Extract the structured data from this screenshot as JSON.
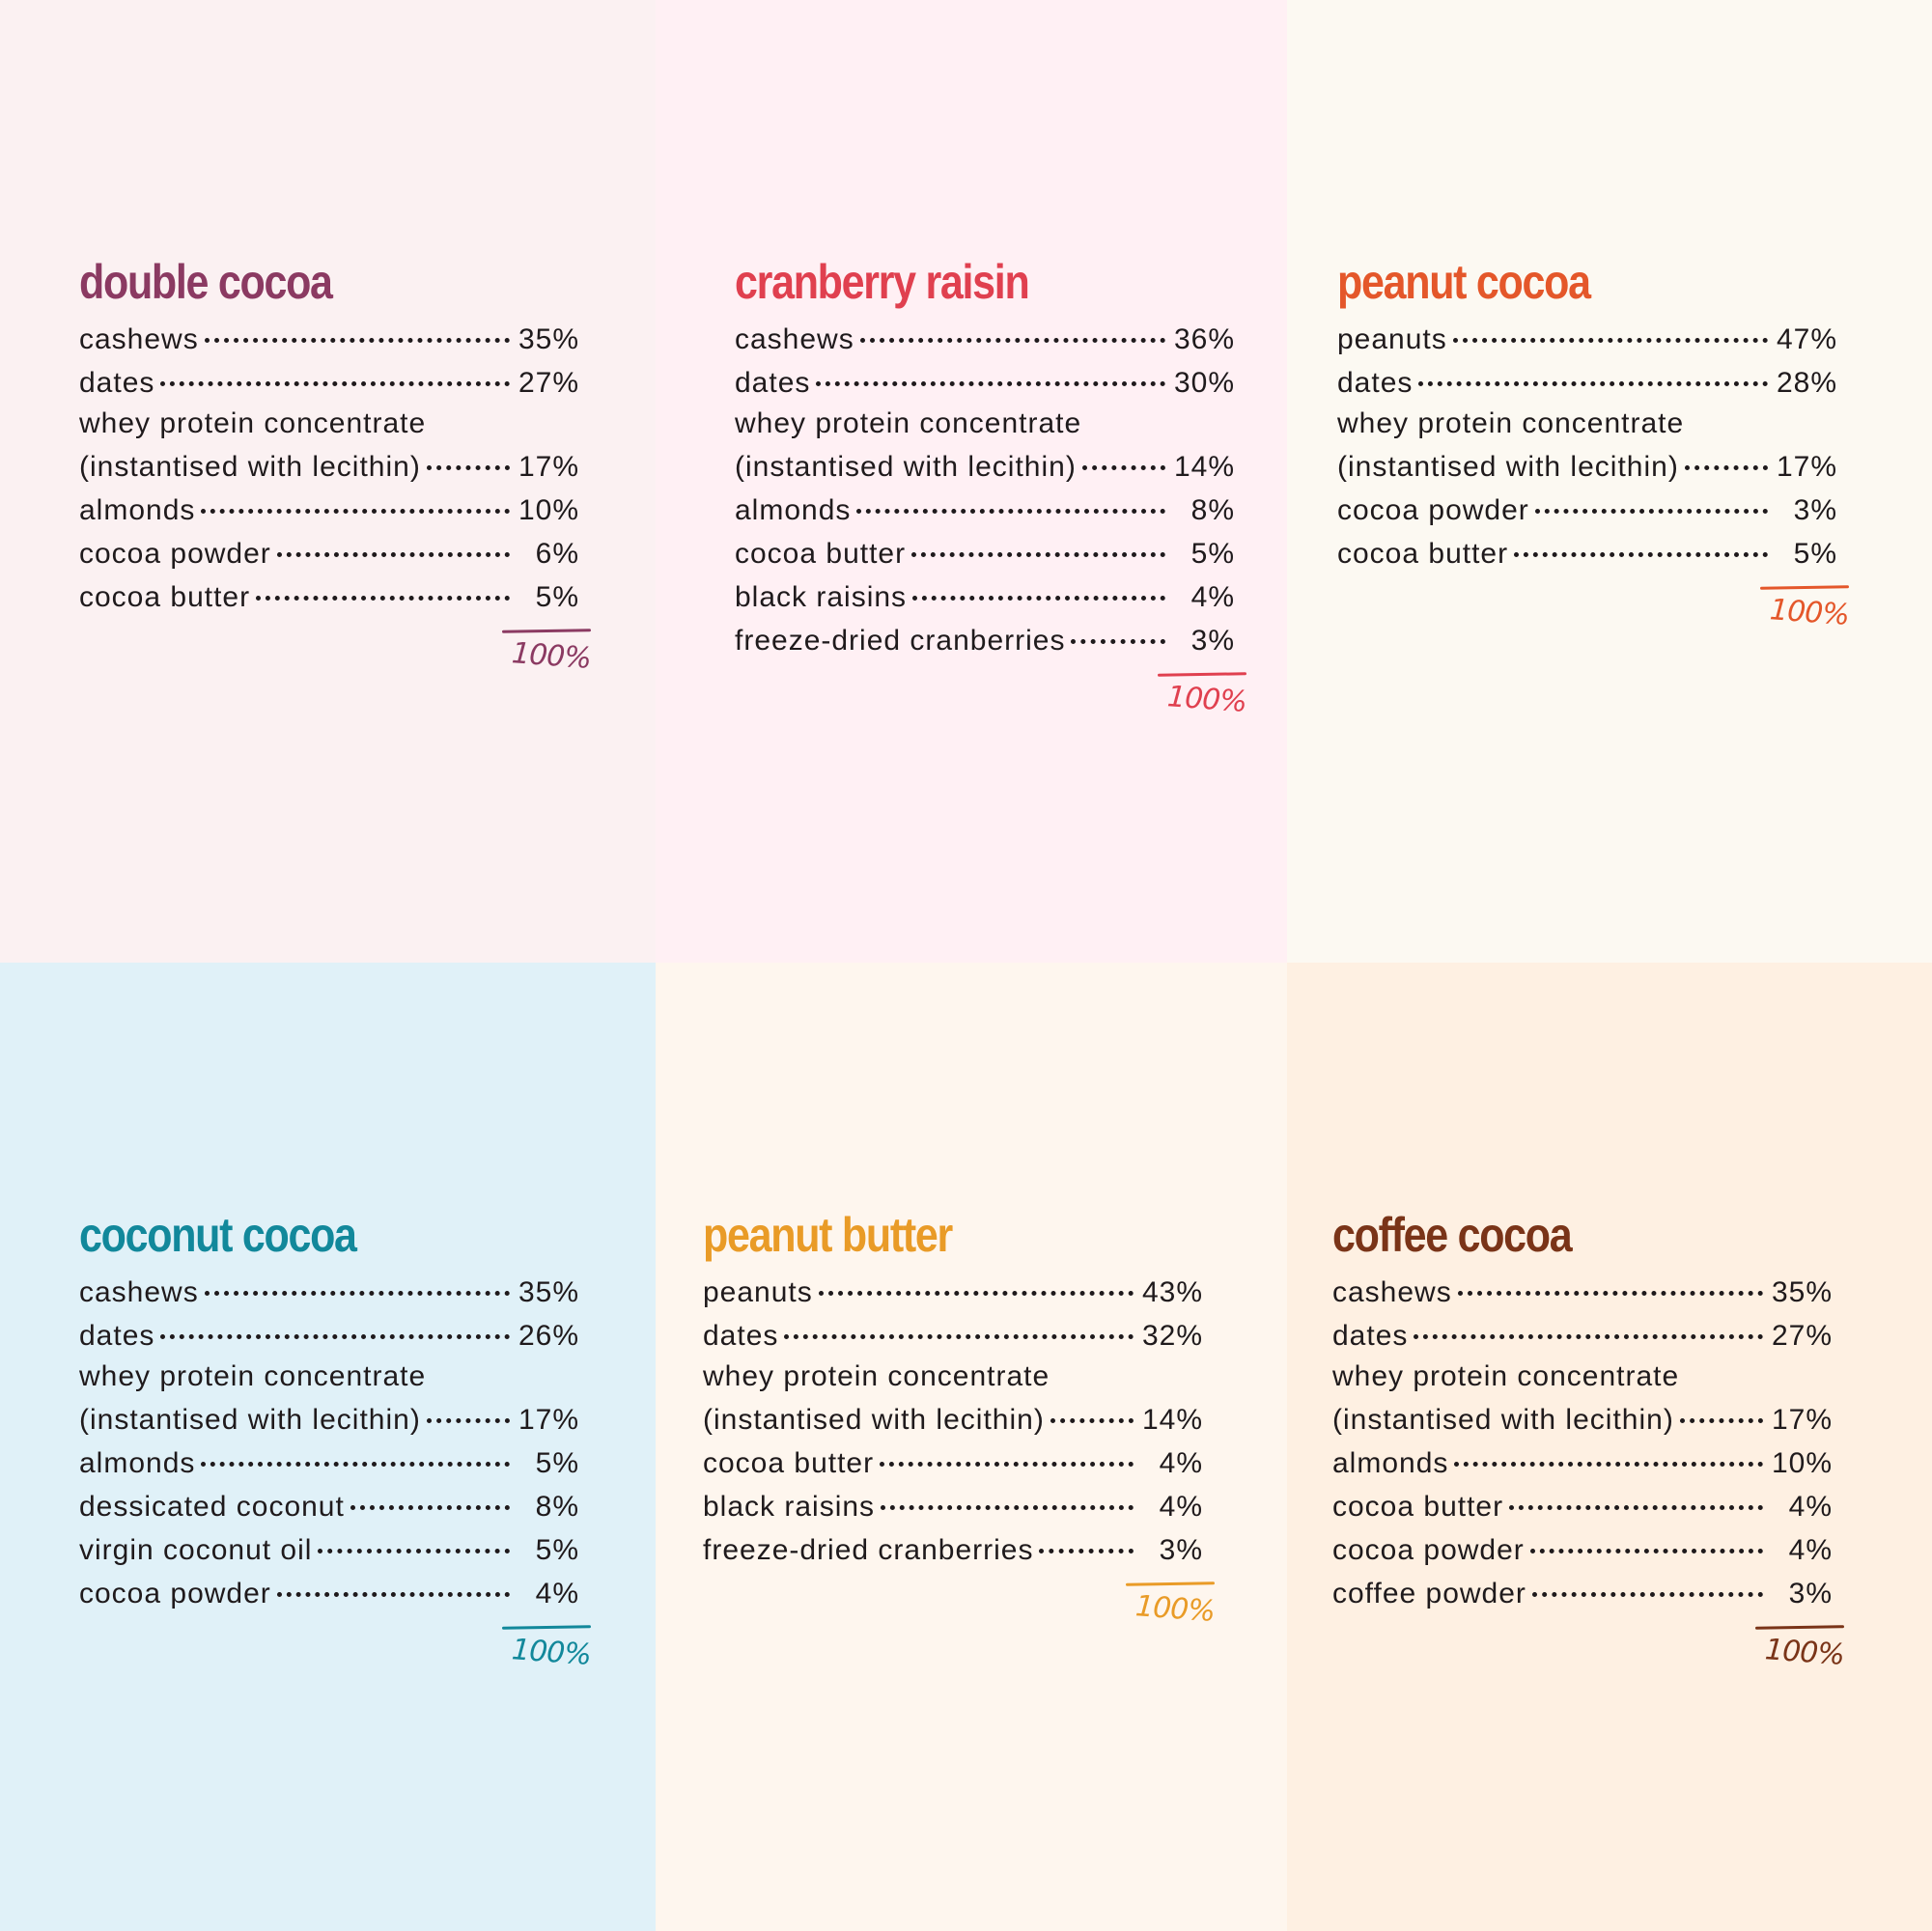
{
  "colors": {
    "bg": [
      "#fbf1f2",
      "#fff0f4",
      "#fcf9f2",
      "#e0f1f8",
      "#fef6ee",
      "#fef0e2"
    ],
    "accent": [
      "#8b3a62",
      "#e0404f",
      "#e4572a",
      "#12889b",
      "#e99b27",
      "#7a3418"
    ]
  },
  "products": [
    {
      "title": "double cocoa",
      "ingredients": [
        {
          "name": "cashews",
          "pct": "35%"
        },
        {
          "name": "dates",
          "pct": "27%"
        },
        {
          "name": "whey protein concentrate",
          "pct": ""
        },
        {
          "name": "(instantised with lecithin)",
          "pct": "17%"
        },
        {
          "name": "almonds",
          "pct": "10%"
        },
        {
          "name": "cocoa powder",
          "pct": "6%"
        },
        {
          "name": "cocoa butter",
          "pct": "5%"
        }
      ],
      "total": "100%"
    },
    {
      "title": "cranberry raisin",
      "ingredients": [
        {
          "name": "cashews",
          "pct": "36%"
        },
        {
          "name": "dates",
          "pct": "30%"
        },
        {
          "name": "whey protein concentrate",
          "pct": ""
        },
        {
          "name": "(instantised with lecithin)",
          "pct": "14%"
        },
        {
          "name": "almonds",
          "pct": "8%"
        },
        {
          "name": "cocoa butter",
          "pct": "5%"
        },
        {
          "name": "black raisins",
          "pct": "4%"
        },
        {
          "name": "freeze-dried cranberries",
          "pct": "3%"
        }
      ],
      "total": "100%"
    },
    {
      "title": "peanut cocoa",
      "ingredients": [
        {
          "name": "peanuts",
          "pct": "47%"
        },
        {
          "name": "dates",
          "pct": "28%"
        },
        {
          "name": "whey protein concentrate",
          "pct": ""
        },
        {
          "name": "(instantised with lecithin)",
          "pct": "17%"
        },
        {
          "name": "cocoa powder",
          "pct": "3%"
        },
        {
          "name": "cocoa butter",
          "pct": "5%"
        }
      ],
      "total": "100%"
    },
    {
      "title": "coconut cocoa",
      "ingredients": [
        {
          "name": "cashews",
          "pct": "35%"
        },
        {
          "name": "dates",
          "pct": "26%"
        },
        {
          "name": "whey protein concentrate",
          "pct": ""
        },
        {
          "name": "(instantised with lecithin)",
          "pct": "17%"
        },
        {
          "name": "almonds",
          "pct": "5%"
        },
        {
          "name": "dessicated coconut",
          "pct": "8%"
        },
        {
          "name": "virgin coconut oil",
          "pct": "5%"
        },
        {
          "name": "cocoa powder",
          "pct": "4%"
        }
      ],
      "total": "100%"
    },
    {
      "title": "peanut butter",
      "ingredients": [
        {
          "name": "peanuts",
          "pct": "43%"
        },
        {
          "name": "dates",
          "pct": "32%"
        },
        {
          "name": "whey protein concentrate",
          "pct": ""
        },
        {
          "name": "(instantised with lecithin)",
          "pct": "14%"
        },
        {
          "name": "cocoa butter",
          "pct": "4%"
        },
        {
          "name": "black raisins",
          "pct": "4%"
        },
        {
          "name": "freeze-dried cranberries",
          "pct": "3%"
        }
      ],
      "total": "100%"
    },
    {
      "title": "coffee cocoa",
      "ingredients": [
        {
          "name": "cashews",
          "pct": "35%"
        },
        {
          "name": "dates",
          "pct": "27%"
        },
        {
          "name": "whey protein concentrate",
          "pct": ""
        },
        {
          "name": "(instantised with lecithin)",
          "pct": "17%"
        },
        {
          "name": "almonds",
          "pct": "10%"
        },
        {
          "name": "cocoa butter",
          "pct": "4%"
        },
        {
          "name": "cocoa powder",
          "pct": "4%"
        },
        {
          "name": "coffee powder",
          "pct": "3%"
        }
      ],
      "total": "100%"
    }
  ]
}
